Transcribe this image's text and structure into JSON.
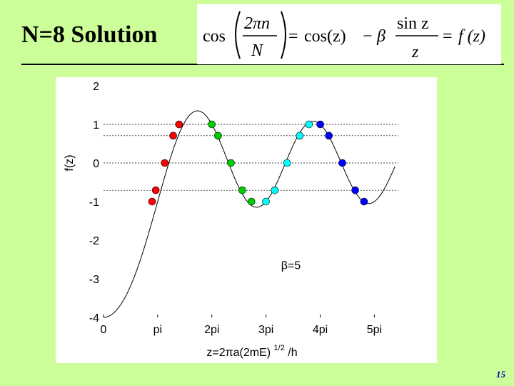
{
  "slide": {
    "title": "N=8 Solution",
    "page_number": "15"
  },
  "formula": {
    "cos_left": "cos",
    "num": "2πn",
    "den": "N",
    "eq1": "=",
    "rhs": "cos(z)",
    "minus": "−",
    "beta": "β",
    "frac2_num": "sin z",
    "frac2_den": "z",
    "eq2": "=",
    "f": "f (z)"
  },
  "chart_data": {
    "type": "line",
    "title": "",
    "xlabel_main": "z=2πa(2mE)",
    "xlabel_sup": "1/2",
    "xlabel_tail": "/h",
    "ylabel": "f(z)",
    "annotation": "β=5",
    "beta": 5,
    "xlim": [
      0,
      17.1
    ],
    "ylim": [
      -4,
      2
    ],
    "x_ticks": [
      {
        "value": 0,
        "label": "0"
      },
      {
        "value": 3.14159,
        "label": "pi"
      },
      {
        "value": 6.28319,
        "label": "2pi"
      },
      {
        "value": 9.42478,
        "label": "3pi"
      },
      {
        "value": 12.56637,
        "label": "4pi"
      },
      {
        "value": 15.70796,
        "label": "5pi"
      }
    ],
    "y_ticks": [
      {
        "value": 2,
        "label": "2"
      },
      {
        "value": 1,
        "label": "1"
      },
      {
        "value": 0,
        "label": "0"
      },
      {
        "value": -1,
        "label": "-1"
      },
      {
        "value": -2,
        "label": "-2"
      },
      {
        "value": -3,
        "label": "-3"
      },
      {
        "value": -4,
        "label": "-4"
      }
    ],
    "reference_lines": [
      1,
      0.7071,
      0,
      -0.7071
    ],
    "curve_color": "#000000",
    "series": [
      {
        "color": "#ff0000",
        "points": [
          [
            2.82,
            -1
          ],
          [
            3.03,
            -0.707
          ],
          [
            3.55,
            0
          ],
          [
            4.04,
            0.707
          ],
          [
            4.38,
            1
          ]
        ]
      },
      {
        "color": "#00cc00",
        "points": [
          [
            6.28,
            1
          ],
          [
            6.64,
            0.707
          ],
          [
            7.39,
            0
          ],
          [
            8.05,
            -0.707
          ],
          [
            8.58,
            -1
          ]
        ]
      },
      {
        "color": "#00ffff",
        "points": [
          [
            9.42,
            -1
          ],
          [
            9.93,
            -0.707
          ],
          [
            10.65,
            0
          ],
          [
            11.38,
            0.707
          ],
          [
            11.92,
            1
          ]
        ]
      },
      {
        "color": "#0000ff",
        "points": [
          [
            12.57,
            1
          ],
          [
            13.07,
            0.707
          ],
          [
            13.85,
            0
          ],
          [
            14.6,
            -0.707
          ],
          [
            15.11,
            -1
          ]
        ]
      }
    ]
  }
}
